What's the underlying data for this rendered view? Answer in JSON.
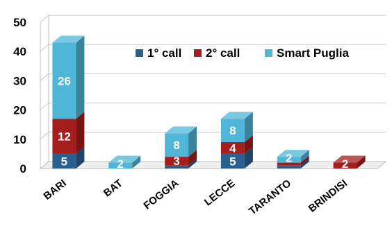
{
  "chart_data": {
    "type": "bar",
    "stacked": true,
    "style": "3d",
    "categories": [
      "BARI",
      "BAT",
      "FOGGIA",
      "LECCE",
      "TARANTO",
      "BRINDISI"
    ],
    "series": [
      {
        "name": "1° call",
        "color": "#2a5f8f",
        "values": [
          5,
          0,
          1,
          5,
          1,
          0
        ]
      },
      {
        "name": "2° call",
        "color": "#a51d1d",
        "values": [
          12,
          0,
          3,
          4,
          1,
          2
        ]
      },
      {
        "name": "Smart Puglia",
        "color": "#4fb6d8",
        "values": [
          26,
          2,
          8,
          8,
          2,
          0
        ]
      }
    ],
    "data_labels": [
      [
        "5",
        "",
        "",
        "5",
        "",
        ""
      ],
      [
        "12",
        "",
        "3",
        "4",
        "",
        "2"
      ],
      [
        "26",
        "2",
        "8",
        "8",
        "2",
        ""
      ]
    ],
    "yticks": [
      "0",
      "10",
      "20",
      "30",
      "40",
      "50"
    ],
    "ylim": [
      0,
      50
    ],
    "grid": true,
    "legend_position": "upper-right"
  }
}
